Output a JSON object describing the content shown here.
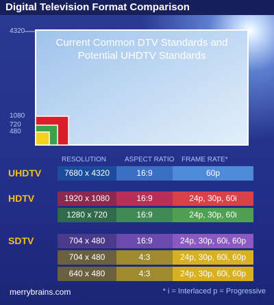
{
  "header": {
    "title": "Digital Television Format Comparison"
  },
  "diagram": {
    "caption_lines": [
      "Current Common DTV Standards and",
      "Potential UHDTV Standards"
    ],
    "labels": [
      "4320",
      "1080",
      "720",
      "480"
    ]
  },
  "table": {
    "headers": [
      "RESOLUTION",
      "ASPECT RATIO",
      "FRAME RATE*"
    ],
    "groups": [
      {
        "label": "UHDTV",
        "rows": [
          [
            "7680 x 4320",
            "16:9",
            "60p"
          ]
        ]
      },
      {
        "label": "HDTV",
        "rows": [
          [
            "1920 x 1080",
            "16:9",
            "24p, 30p, 60i"
          ],
          [
            "1280 x 720",
            "16:9",
            "24p, 30p, 60i"
          ]
        ]
      },
      {
        "label": "SDTV",
        "rows": [
          [
            "704 x 480",
            "16:9",
            "24p, 30p, 60i, 60p"
          ],
          [
            "704 x 480",
            "4:3",
            "24p, 30p, 60i, 60p"
          ],
          [
            "640 x 480",
            "4:3",
            "24p, 30p, 60i, 60p"
          ]
        ]
      }
    ]
  },
  "footer": {
    "site": "merrybrains.com",
    "note": "* i = Interlaced p = Progressive"
  }
}
